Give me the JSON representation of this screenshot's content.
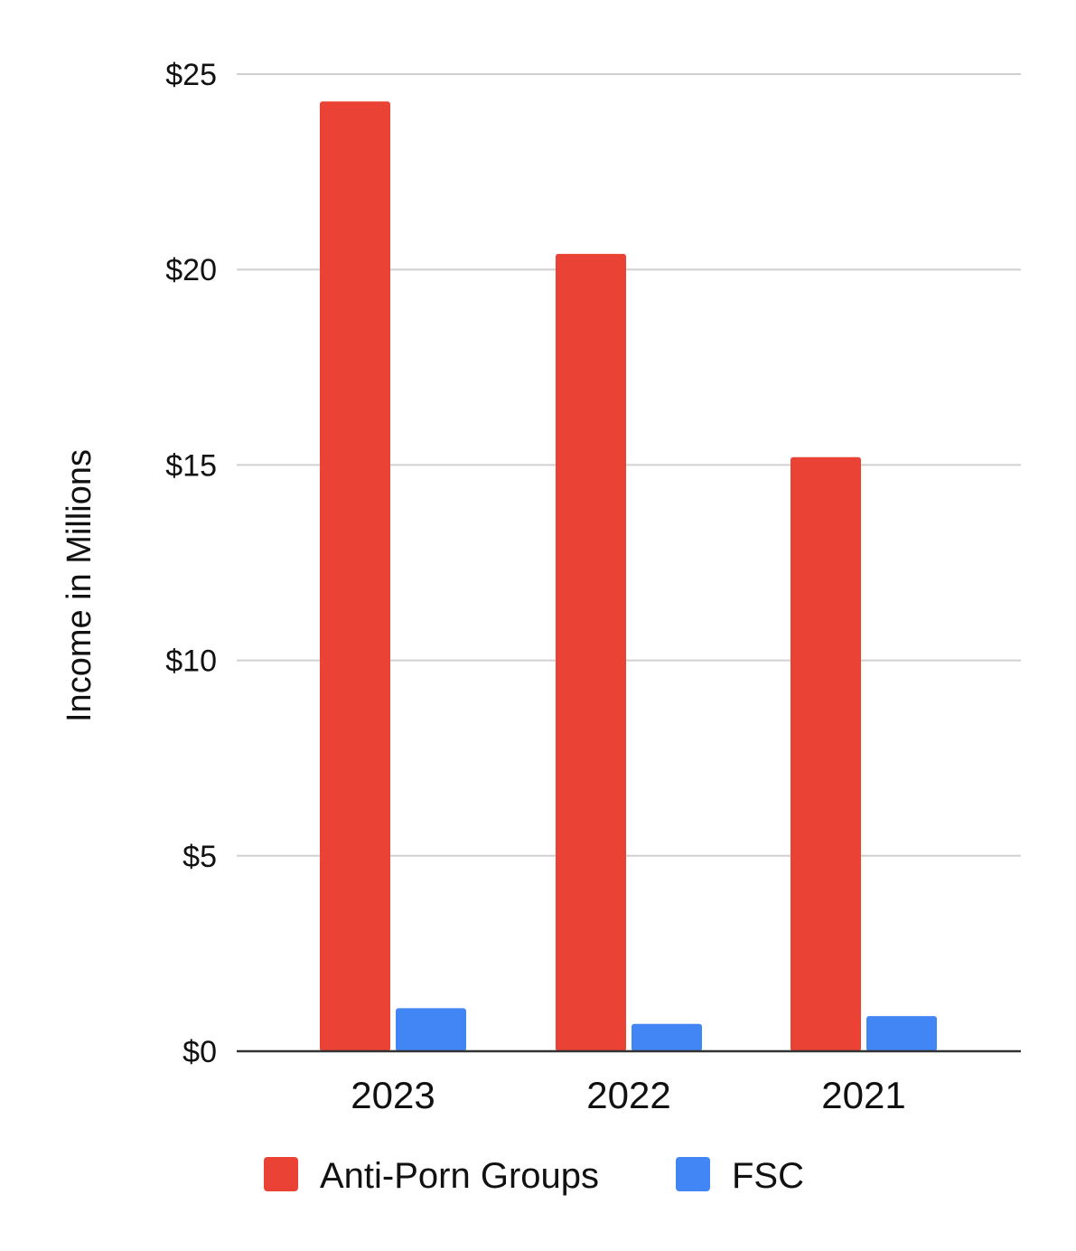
{
  "chart_data": {
    "type": "bar",
    "title": "",
    "xlabel": "",
    "ylabel": "Income in Millions",
    "ylim": [
      0,
      25
    ],
    "yticks": [
      {
        "value": 0,
        "label": "$0"
      },
      {
        "value": 5,
        "label": "$5"
      },
      {
        "value": 10,
        "label": "$10"
      },
      {
        "value": 15,
        "label": "$15"
      },
      {
        "value": 20,
        "label": "$20"
      },
      {
        "value": 25,
        "label": "$25"
      }
    ],
    "categories": [
      "2023",
      "2022",
      "2021"
    ],
    "series": [
      {
        "name": "Anti-Porn Groups",
        "color": "#EA4335",
        "values": [
          24.3,
          20.4,
          15.2
        ]
      },
      {
        "name": "FSC",
        "color": "#4285F4",
        "values": [
          1.1,
          0.7,
          0.9
        ]
      }
    ],
    "grid": true,
    "legend_position": "bottom"
  }
}
